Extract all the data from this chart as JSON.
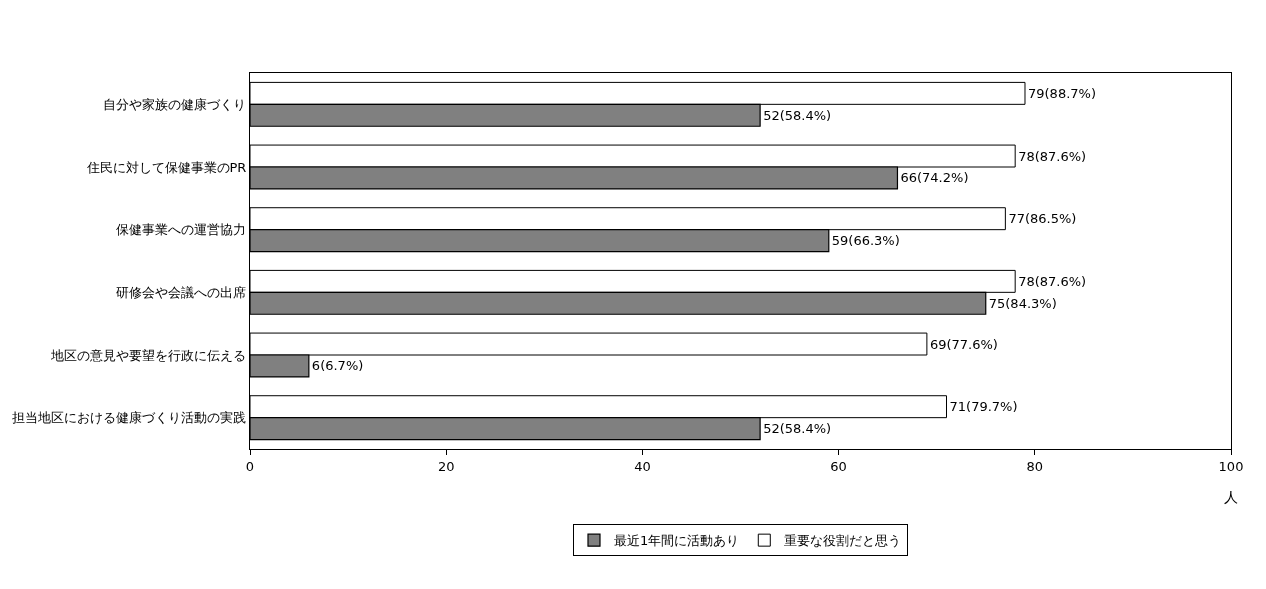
{
  "chart_data": {
    "type": "bar",
    "orientation": "horizontal",
    "categories": [
      "自分や家族の健康づくり",
      "住民に対して保健事業のPR",
      "保健事業への運営協力",
      "研修会や会議への出席",
      "地区の意見や要望を行政に伝える",
      "担当地区における健康づくり活動の実践"
    ],
    "series": [
      {
        "name": "最近1年間に活動あり",
        "color": "#808080",
        "values": [
          52,
          66,
          59,
          75,
          6,
          52
        ],
        "value_labels": [
          "52(58.4%)",
          "66(74.2%)",
          "59(66.3%)",
          "75(84.3%)",
          "6(6.7%)",
          "52(58.4%)"
        ]
      },
      {
        "name": "重要な役割だと思う",
        "color": "#ffffff",
        "values": [
          79,
          78,
          77,
          78,
          69,
          71
        ],
        "value_labels": [
          "79(88.7%)",
          "78(87.6%)",
          "77(86.5%)",
          "78(87.6%)",
          "69(77.6%)",
          "71(79.7%)"
        ]
      }
    ],
    "xlim": [
      0,
      100
    ],
    "xticks": [
      0,
      20,
      40,
      60,
      80,
      100
    ],
    "xlabel": "人",
    "grid": false,
    "legend": "bottom"
  }
}
